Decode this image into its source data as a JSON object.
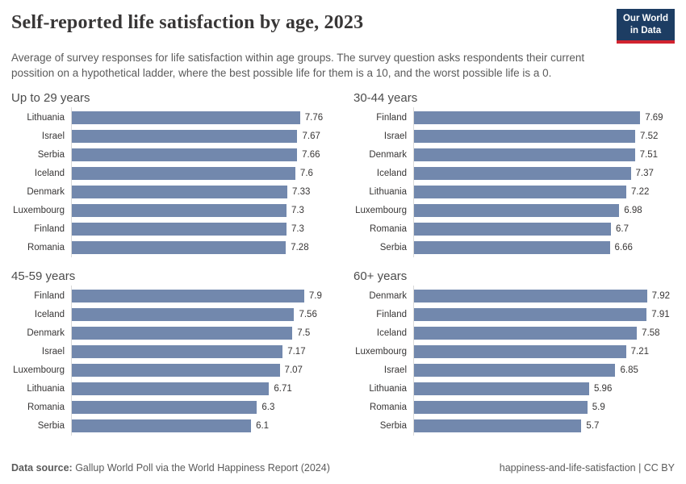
{
  "header": {
    "title": "Self-reported life satisfaction by age, 2023",
    "logo_line1": "Our World",
    "logo_line2": "in Data"
  },
  "subtitle": "Average of survey responses for life satisfaction within age groups. The survey question asks respondents their current possition on a hypothetical ladder, where the best possible life for them is a 10, and the worst possible life is a 0.",
  "chart_data": {
    "type": "bar",
    "title": "Self-reported life satisfaction by age, 2023",
    "orientation": "horizontal",
    "grid": false,
    "value_range": [
      0,
      10
    ],
    "xlim": [
      0,
      8.86
    ],
    "panels": [
      {
        "title": "Up to 29 years",
        "categories": [
          "Lithuania",
          "Israel",
          "Serbia",
          "Iceland",
          "Denmark",
          "Luxembourg",
          "Finland",
          "Romania"
        ],
        "values": [
          7.76,
          7.67,
          7.66,
          7.6,
          7.33,
          7.3,
          7.3,
          7.28
        ]
      },
      {
        "title": "30-44 years",
        "categories": [
          "Finland",
          "Israel",
          "Denmark",
          "Iceland",
          "Lithuania",
          "Luxembourg",
          "Romania",
          "Serbia"
        ],
        "values": [
          7.69,
          7.52,
          7.51,
          7.37,
          7.22,
          6.98,
          6.7,
          6.66
        ]
      },
      {
        "title": "45-59 years",
        "categories": [
          "Finland",
          "Iceland",
          "Denmark",
          "Israel",
          "Luxembourg",
          "Lithuania",
          "Romania",
          "Serbia"
        ],
        "values": [
          7.9,
          7.56,
          7.5,
          7.17,
          7.07,
          6.71,
          6.3,
          6.1
        ]
      },
      {
        "title": "60+ years",
        "categories": [
          "Denmark",
          "Finland",
          "Iceland",
          "Luxembourg",
          "Israel",
          "Lithuania",
          "Romania",
          "Serbia"
        ],
        "values": [
          7.92,
          7.91,
          7.58,
          7.21,
          6.85,
          5.96,
          5.9,
          5.7
        ]
      }
    ]
  },
  "footer": {
    "source_label": "Data source:",
    "source_text": " Gallup World Poll via the World Happiness Report (2024)",
    "right_text": "happiness-and-life-satisfaction | CC BY"
  },
  "colors": {
    "bar": "#7288ad",
    "navy": "#1d3d63",
    "red": "#d1232f",
    "axis_line": "#dadada",
    "text_dark": "#383636",
    "text_gray": "#5b5b5b"
  }
}
